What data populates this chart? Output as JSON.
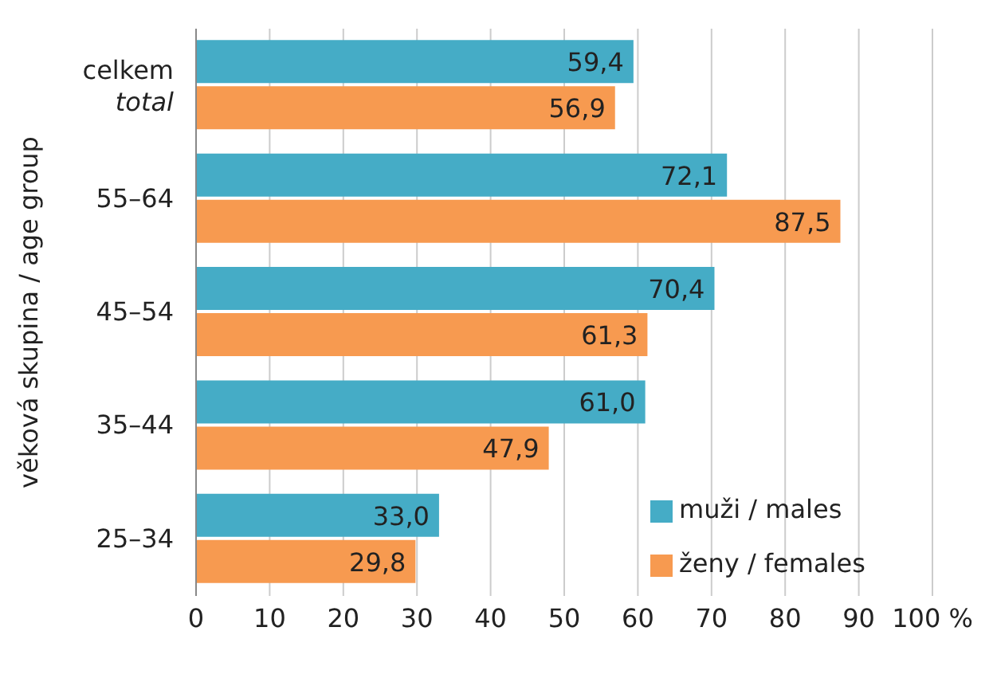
{
  "chart_data": {
    "type": "bar",
    "orientation": "horizontal",
    "ylabel": "věková skupina / age group",
    "categories": [
      "celkem total",
      "55–64",
      "45–54",
      "35–44",
      "25–34"
    ],
    "series": [
      {
        "name": "muži / males",
        "color": "#45acc6",
        "values": [
          59.4,
          72.1,
          70.4,
          61.0,
          33.0
        ],
        "value_labels": [
          "59,4",
          "72,1",
          "70,4",
          "61,0",
          "33,0"
        ]
      },
      {
        "name": "ženy / females",
        "color": "#f79a50",
        "values": [
          56.9,
          87.5,
          61.3,
          47.9,
          29.8
        ],
        "value_labels": [
          "56,9",
          "87,5",
          "61,3",
          "47,9",
          "29,8"
        ]
      }
    ],
    "xlim": [
      0,
      100
    ],
    "xticks": [
      0,
      10,
      20,
      30,
      40,
      50,
      60,
      70,
      80,
      90,
      {
        "value": 100,
        "label": "100 %"
      }
    ],
    "grid": "x",
    "legend": "bottom right"
  }
}
